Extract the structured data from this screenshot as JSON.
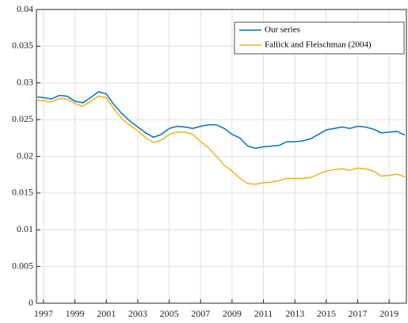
{
  "chart_data": {
    "type": "line",
    "x": [
      1996.6,
      1997.0,
      1997.5,
      1998.0,
      1998.5,
      1999.0,
      1999.5,
      2000.0,
      2000.5,
      2001.0,
      2001.5,
      2002.0,
      2002.5,
      2003.0,
      2003.5,
      2004.0,
      2004.5,
      2005.0,
      2005.5,
      2006.0,
      2006.5,
      2007.0,
      2007.5,
      2008.0,
      2008.5,
      2009.0,
      2009.5,
      2010.0,
      2010.5,
      2011.0,
      2011.5,
      2012.0,
      2012.5,
      2013.0,
      2013.5,
      2014.0,
      2014.5,
      2015.0,
      2015.5,
      2016.0,
      2016.5,
      2017.0,
      2017.5,
      2018.0,
      2018.5,
      2019.0,
      2019.5,
      2020.0
    ],
    "series": [
      {
        "name": "Our series",
        "color": "#0072bd",
        "values": [
          0.0281,
          0.028,
          0.0278,
          0.0283,
          0.0282,
          0.0275,
          0.0273,
          0.028,
          0.0288,
          0.0285,
          0.027,
          0.0258,
          0.0248,
          0.024,
          0.0232,
          0.0226,
          0.023,
          0.0238,
          0.0241,
          0.024,
          0.0238,
          0.0241,
          0.0243,
          0.0243,
          0.0238,
          0.023,
          0.0225,
          0.0214,
          0.0211,
          0.0213,
          0.0214,
          0.0215,
          0.022,
          0.022,
          0.0221,
          0.0224,
          0.023,
          0.0236,
          0.0238,
          0.024,
          0.0238,
          0.0241,
          0.024,
          0.0237,
          0.0232,
          0.0233,
          0.0234,
          0.0229
        ]
      },
      {
        "name": "Fallick and Fleischman (2004)",
        "color": "#edb120",
        "values": [
          0.0277,
          0.0276,
          0.0274,
          0.0279,
          0.0278,
          0.0272,
          0.0268,
          0.0275,
          0.0282,
          0.028,
          0.0264,
          0.0251,
          0.0242,
          0.0235,
          0.0225,
          0.0219,
          0.0222,
          0.023,
          0.0233,
          0.0233,
          0.023,
          0.022,
          0.0212,
          0.02,
          0.0188,
          0.018,
          0.017,
          0.0163,
          0.0162,
          0.0164,
          0.0165,
          0.0167,
          0.017,
          0.017,
          0.017,
          0.0171,
          0.0176,
          0.018,
          0.0182,
          0.0183,
          0.0181,
          0.0184,
          0.0183,
          0.018,
          0.0173,
          0.0174,
          0.0176,
          0.0172
        ]
      }
    ],
    "xlim": [
      1996.55,
      2020.1
    ],
    "xticks": [
      1997,
      1999,
      2001,
      2003,
      2005,
      2007,
      2009,
      2011,
      2013,
      2015,
      2017,
      2019
    ],
    "ylim": [
      0,
      0.04
    ],
    "yticks": [
      0,
      0.005,
      0.01,
      0.015,
      0.02,
      0.025,
      0.03,
      0.035,
      0.04
    ],
    "grid": true,
    "legend": "northeast"
  }
}
